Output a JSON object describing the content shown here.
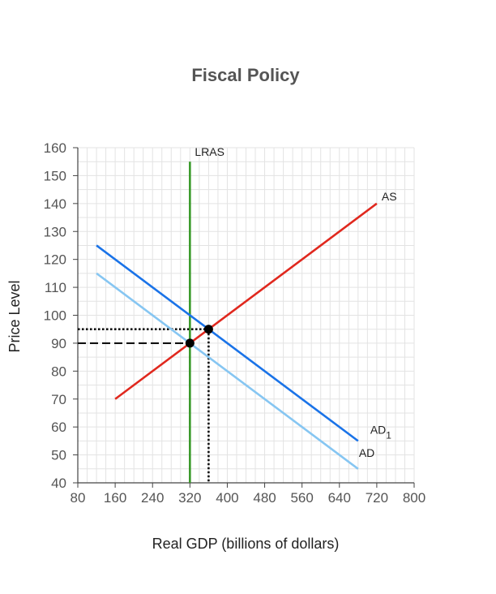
{
  "chart_data": {
    "type": "line",
    "title": "Fiscal Policy",
    "xlabel": "Real GDP (billions of dollars)",
    "ylabel": "Price Level",
    "xlim": [
      80,
      800
    ],
    "ylim": [
      40,
      160
    ],
    "x_ticks": [
      80,
      160,
      240,
      320,
      400,
      480,
      560,
      640,
      720,
      800
    ],
    "y_ticks": [
      40,
      50,
      60,
      70,
      80,
      90,
      100,
      110,
      120,
      130,
      140,
      150,
      160
    ],
    "grid": true,
    "series": [
      {
        "name": "LRAS",
        "color": "#3a9a2a",
        "points": [
          [
            320,
            40
          ],
          [
            320,
            155
          ]
        ]
      },
      {
        "name": "AS",
        "color": "#e0281e",
        "points": [
          [
            160,
            70
          ],
          [
            720,
            140
          ]
        ]
      },
      {
        "name": "AD1",
        "color": "#1a73e8",
        "points": [
          [
            120,
            125
          ],
          [
            680,
            55
          ]
        ]
      },
      {
        "name": "AD",
        "color": "#86c6f2",
        "points": [
          [
            120,
            115
          ],
          [
            680,
            45
          ]
        ]
      }
    ],
    "labels": {
      "LRAS": "LRAS",
      "AS": "AS",
      "AD1_main": "AD",
      "AD1_sub": "1",
      "AD": "AD"
    },
    "equilibria": [
      {
        "x": 320,
        "y": 90,
        "guide": "dashed"
      },
      {
        "x": 360,
        "y": 95,
        "guide": "dotted"
      }
    ]
  }
}
